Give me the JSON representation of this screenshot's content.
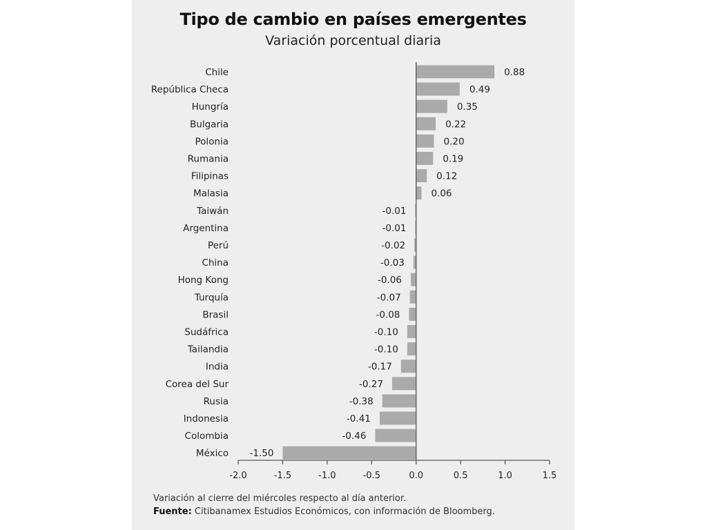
{
  "title": "Tipo de cambio en países emergentes",
  "subtitle": "Variación porcentual diaria",
  "footer": {
    "note": "Variación al cierre del miércoles respecto al día anterior.",
    "source_label": "Fuente:",
    "source_text": " Citibanamex Estudios Económicos, con información de Bloomberg."
  },
  "colors": {
    "bar": "#aaaaaa",
    "axis": "#555555",
    "background": "#eeeeee",
    "text": "#222222"
  },
  "chart_data": {
    "type": "bar",
    "orientation": "horizontal",
    "title": "Tipo de cambio en países emergentes",
    "subtitle": "Variación porcentual diaria",
    "xlim": [
      -2.0,
      1.5
    ],
    "xticks": [
      -2.0,
      -1.5,
      -1.0,
      -0.5,
      0.0,
      0.5,
      1.0,
      1.5
    ],
    "xtick_labels": [
      "-2.0",
      "-1.5",
      "-1.0",
      "-0.5",
      "0.0",
      "0.5",
      "1.0",
      "1.5"
    ],
    "grid": false,
    "categories": [
      "Chile",
      "República Checa",
      "Hungría",
      "Bulgaria",
      "Polonia",
      "Rumania",
      "Filipinas",
      "Malasia",
      "Taiwán",
      "Argentina",
      "Perú",
      "China",
      "Hong Kong",
      "Turquía",
      "Brasil",
      "Sudáfrica",
      "Tailandia",
      "India",
      "Corea del Sur",
      "Rusia",
      "Indonesia",
      "Colombia",
      "México"
    ],
    "values": [
      0.88,
      0.49,
      0.35,
      0.22,
      0.2,
      0.19,
      0.12,
      0.06,
      -0.01,
      -0.01,
      -0.02,
      -0.03,
      -0.06,
      -0.07,
      -0.08,
      -0.1,
      -0.1,
      -0.17,
      -0.27,
      -0.38,
      -0.41,
      -0.46,
      -1.5
    ],
    "value_labels": [
      "0.88",
      "0.49",
      "0.35",
      "0.22",
      "0.20",
      "0.19",
      "0.12",
      "0.06",
      "-0.01",
      "-0.01",
      "-0.02",
      "-0.03",
      "-0.06",
      "-0.07",
      "-0.08",
      "-0.10",
      "-0.10",
      "-0.17",
      "-0.27",
      "-0.38",
      "-0.41",
      "-0.46",
      "-1.50"
    ]
  }
}
